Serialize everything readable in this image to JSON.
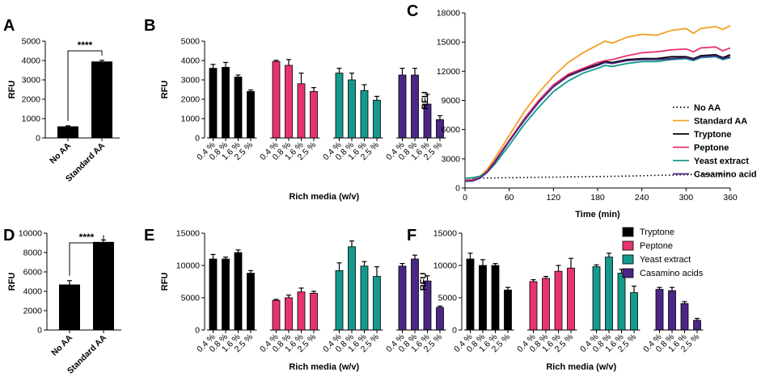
{
  "colors": {
    "tryptone": "#000000",
    "peptone": "#e8336d",
    "yeast": "#14998c",
    "casamino": "#4a2785",
    "standard": "#f0a020",
    "noaa": "#000000"
  },
  "panels": {
    "A": "A",
    "B": "B",
    "C": "C",
    "D": "D",
    "E": "E",
    "F": "F"
  },
  "shared": {
    "ylabel": "RFU",
    "rich_xlabel": "Rich media (w/v)",
    "conc_labels": [
      "0.4 %",
      "0.8 %",
      "1.6 %",
      "2.5 %"
    ]
  },
  "legend_right": {
    "items": [
      {
        "label": "Tryptone",
        "color": "#000000"
      },
      {
        "label": "Peptone",
        "color": "#e8336d"
      },
      {
        "label": "Yeast extract",
        "color": "#14998c"
      },
      {
        "label": "Casamino acids",
        "color": "#4a2785"
      }
    ]
  },
  "chart_data": [
    {
      "id": "A",
      "type": "bar",
      "ylabel": "RFU",
      "categories": [
        "No AA",
        "Standard AA"
      ],
      "values": [
        600,
        3950
      ],
      "errors": [
        30,
        60
      ],
      "ylim": [
        0,
        5000
      ],
      "yticks": [
        "0",
        "1000",
        "2000",
        "3000",
        "4000",
        "5000"
      ],
      "annotation": "****"
    },
    {
      "id": "B",
      "type": "bar",
      "ylabel": "RFU",
      "xlabel": "Rich media (w/v)",
      "ylim": [
        0,
        5000
      ],
      "yticks": [
        "0",
        "1000",
        "2000",
        "3000",
        "4000",
        "5000"
      ],
      "categories": [
        "0.4 %",
        "0.8 %",
        "1.6 %",
        "2.5 %"
      ],
      "series": [
        {
          "name": "Tryptone",
          "values": [
            3600,
            3650,
            3150,
            2400
          ],
          "errors": [
            200,
            250,
            100,
            80
          ]
        },
        {
          "name": "Peptone",
          "values": [
            3950,
            3750,
            2800,
            2400
          ],
          "errors": [
            60,
            300,
            550,
            200
          ]
        },
        {
          "name": "Yeast extract",
          "values": [
            3350,
            3000,
            2450,
            1950
          ],
          "errors": [
            250,
            350,
            300,
            200
          ]
        },
        {
          "name": "Casamino acids",
          "values": [
            3250,
            3250,
            1750,
            950
          ],
          "errors": [
            350,
            350,
            500,
            200
          ]
        }
      ]
    },
    {
      "id": "C",
      "type": "line",
      "ylabel": "RFU",
      "xlabel": "Time (min)",
      "xlim": [
        0,
        360
      ],
      "ylim": [
        0,
        18000
      ],
      "xticks": [
        "0",
        "60",
        "120",
        "180",
        "240",
        "300",
        "360"
      ],
      "yticks": [
        "0",
        "3000",
        "6000",
        "9000",
        "12000",
        "15000",
        "18000"
      ],
      "x": [
        0,
        10,
        20,
        30,
        40,
        60,
        80,
        100,
        120,
        140,
        160,
        180,
        190,
        200,
        220,
        240,
        260,
        280,
        300,
        310,
        320,
        340,
        350,
        360
      ],
      "series": [
        {
          "name": "No AA",
          "style": "dotted",
          "values": [
            1000,
            1000,
            1020,
            1030,
            1040,
            1060,
            1080,
            1100,
            1120,
            1140,
            1160,
            1180,
            1190,
            1200,
            1230,
            1260,
            1300,
            1330,
            1370,
            1390,
            1400,
            1420,
            1430,
            1450
          ]
        },
        {
          "name": "Standard AA",
          "style": "solid",
          "values": [
            800,
            850,
            1200,
            1900,
            3000,
            5400,
            7800,
            9800,
            11500,
            12900,
            13900,
            14700,
            15100,
            14900,
            15500,
            15800,
            15700,
            16200,
            16400,
            15900,
            16400,
            16600,
            16300,
            16700
          ]
        },
        {
          "name": "Tryptone",
          "style": "solid",
          "values": [
            800,
            820,
            1100,
            1700,
            2700,
            4900,
            7000,
            8900,
            10500,
            11600,
            12200,
            12700,
            13000,
            12900,
            13200,
            13300,
            13300,
            13500,
            13500,
            13300,
            13600,
            13700,
            13400,
            13700
          ]
        },
        {
          "name": "Peptone",
          "style": "solid",
          "values": [
            800,
            820,
            1100,
            1700,
            2700,
            4900,
            7100,
            9000,
            10600,
            11700,
            12300,
            12900,
            13100,
            13200,
            13600,
            13900,
            14000,
            14200,
            14300,
            14000,
            14400,
            14500,
            14100,
            14400
          ]
        },
        {
          "name": "Yeast extract",
          "style": "solid",
          "values": [
            1000,
            1050,
            1200,
            1600,
            2400,
            4400,
            6500,
            8300,
            9900,
            11000,
            11800,
            12300,
            12600,
            12500,
            12800,
            13000,
            13000,
            13200,
            13300,
            13100,
            13400,
            13500,
            13200,
            13400
          ]
        },
        {
          "name": "Casamino acids",
          "style": "solid",
          "values": [
            700,
            720,
            1000,
            1600,
            2600,
            4800,
            6900,
            8800,
            10400,
            11500,
            12100,
            12600,
            12900,
            12800,
            13100,
            13200,
            13200,
            13300,
            13400,
            13200,
            13500,
            13600,
            13300,
            13500
          ]
        }
      ],
      "legend": [
        "No AA",
        "Standard AA",
        "Tryptone",
        "Peptone",
        "Yeast extract",
        "Casamino acid"
      ]
    },
    {
      "id": "D",
      "type": "bar",
      "ylabel": "RFU",
      "categories": [
        "No AA",
        "Standard AA"
      ],
      "values": [
        4700,
        9100
      ],
      "errors": [
        400,
        200
      ],
      "ylim": [
        0,
        10000
      ],
      "yticks": [
        "0",
        "2000",
        "4000",
        "6000",
        "8000",
        "10000"
      ],
      "annotation": "****"
    },
    {
      "id": "E",
      "type": "bar",
      "ylabel": "RFU",
      "xlabel": "Rich media (w/v)",
      "ylim": [
        0,
        15000
      ],
      "yticks": [
        "0",
        "5000",
        "10000",
        "15000"
      ],
      "categories": [
        "0.4 %",
        "0.8 %",
        "1.6 %",
        "2.5 %"
      ],
      "series": [
        {
          "name": "Tryptone",
          "values": [
            11000,
            11000,
            12000,
            8800
          ],
          "errors": [
            700,
            300,
            400,
            400
          ]
        },
        {
          "name": "Peptone",
          "values": [
            4600,
            5000,
            5900,
            5700
          ],
          "errors": [
            150,
            400,
            600,
            300
          ]
        },
        {
          "name": "Yeast extract",
          "values": [
            9200,
            12900,
            9900,
            8300
          ],
          "errors": [
            1200,
            900,
            700,
            1500
          ]
        },
        {
          "name": "Casamino acids",
          "values": [
            9900,
            11000,
            7600,
            3500
          ],
          "errors": [
            400,
            600,
            800,
            200
          ]
        }
      ]
    },
    {
      "id": "F",
      "type": "bar",
      "ylabel": "RFU",
      "xlabel": "Rich media (w/v)",
      "ylim": [
        0,
        15000
      ],
      "yticks": [
        "0",
        "5000",
        "10000",
        "15000"
      ],
      "categories": [
        "0.4 %",
        "0.8 %",
        "1.6 %",
        "2.5 %"
      ],
      "series": [
        {
          "name": "Tryptone",
          "values": [
            11000,
            10000,
            10000,
            6200
          ],
          "errors": [
            900,
            900,
            300,
            400
          ]
        },
        {
          "name": "Peptone",
          "values": [
            7500,
            8000,
            9100,
            9600
          ],
          "errors": [
            300,
            300,
            900,
            1500
          ]
        },
        {
          "name": "Yeast extract",
          "values": [
            9800,
            11300,
            8800,
            5800
          ],
          "errors": [
            300,
            600,
            600,
            1000
          ]
        },
        {
          "name": "Casamino acids",
          "values": [
            6300,
            6100,
            4100,
            1500
          ],
          "errors": [
            300,
            500,
            300,
            300
          ]
        }
      ]
    }
  ]
}
